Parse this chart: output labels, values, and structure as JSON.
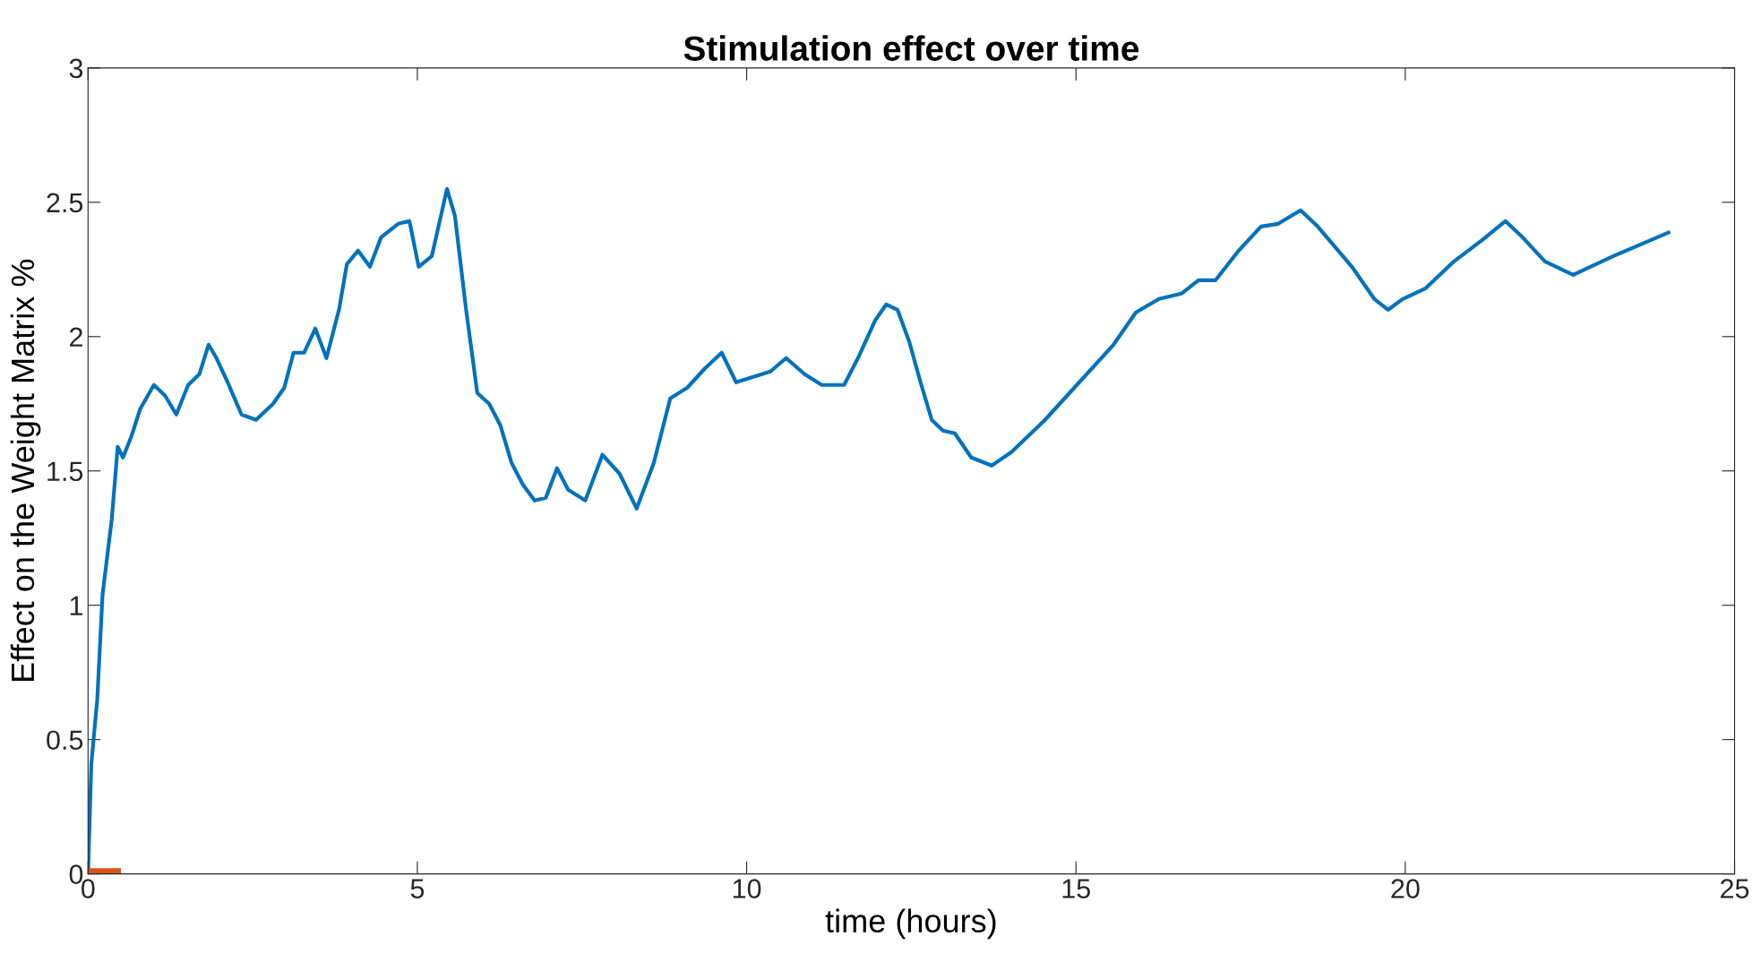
{
  "chart_data": {
    "type": "line",
    "title": "Stimulation effect over time",
    "xlabel": "time (hours)",
    "ylabel": "Effect on the Weight Matrix %",
    "xlim": [
      0,
      25
    ],
    "xticks": [
      0,
      5,
      10,
      15,
      20,
      25
    ],
    "ylim": [
      0,
      3
    ],
    "yticks": [
      0,
      0.5,
      1,
      1.5,
      2,
      2.5,
      3
    ],
    "grid": false,
    "legend": false,
    "series": [
      {
        "color": "#0072bd",
        "x": [
          0,
          0.05,
          0.14,
          0.22,
          0.36,
          0.45,
          0.53,
          0.66,
          0.79,
          1.0,
          1.17,
          1.34,
          1.52,
          1.69,
          1.83,
          1.95,
          2.12,
          2.33,
          2.55,
          2.81,
          2.98,
          3.12,
          3.28,
          3.45,
          3.62,
          3.81,
          3.93,
          4.1,
          4.28,
          4.45,
          4.71,
          4.88,
          5.02,
          5.22,
          5.45,
          5.57,
          5.74,
          5.91,
          6.09,
          6.26,
          6.43,
          6.6,
          6.78,
          6.95,
          7.12,
          7.29,
          7.55,
          7.81,
          8.07,
          8.33,
          8.59,
          8.84,
          9.1,
          9.36,
          9.62,
          9.84,
          10.1,
          10.36,
          10.6,
          10.88,
          11.14,
          11.48,
          11.69,
          11.95,
          12.12,
          12.29,
          12.47,
          12.64,
          12.81,
          12.98,
          13.16,
          13.41,
          13.72,
          14.02,
          14.53,
          15.05,
          15.57,
          15.91,
          16.26,
          16.6,
          16.86,
          17.12,
          17.47,
          17.81,
          18.07,
          18.41,
          18.67,
          19.19,
          19.53,
          19.74,
          19.96,
          20.31,
          20.74,
          21.17,
          21.52,
          21.78,
          22.12,
          22.55,
          23.16,
          24.02
        ],
        "values": [
          0,
          0.41,
          0.65,
          1.04,
          1.32,
          1.59,
          1.55,
          1.63,
          1.73,
          1.82,
          1.78,
          1.71,
          1.82,
          1.86,
          1.97,
          1.92,
          1.83,
          1.71,
          1.69,
          1.75,
          1.81,
          1.94,
          1.94,
          2.03,
          1.92,
          2.1,
          2.27,
          2.32,
          2.26,
          2.37,
          2.42,
          2.43,
          2.26,
          2.3,
          2.55,
          2.45,
          2.1,
          1.79,
          1.75,
          1.67,
          1.53,
          1.45,
          1.39,
          1.4,
          1.51,
          1.43,
          1.39,
          1.56,
          1.49,
          1.36,
          1.53,
          1.77,
          1.81,
          1.88,
          1.94,
          1.83,
          1.85,
          1.87,
          1.92,
          1.86,
          1.82,
          1.82,
          1.92,
          2.06,
          2.12,
          2.1,
          1.98,
          1.83,
          1.69,
          1.65,
          1.64,
          1.55,
          1.52,
          1.57,
          1.69,
          1.83,
          1.97,
          2.09,
          2.14,
          2.16,
          2.21,
          2.21,
          2.32,
          2.41,
          2.42,
          2.47,
          2.41,
          2.26,
          2.14,
          2.1,
          2.14,
          2.18,
          2.28,
          2.36,
          2.43,
          2.37,
          2.28,
          2.23,
          2.3,
          2.39
        ]
      },
      {
        "color": "#d95319",
        "x": [
          0,
          0.5
        ],
        "values": [
          0,
          0
        ]
      }
    ]
  }
}
